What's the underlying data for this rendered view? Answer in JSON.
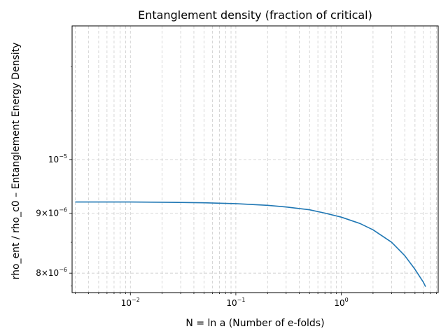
{
  "chart_data": {
    "type": "line",
    "title": "Entanglement density (fraction of critical)",
    "xlabel": "N = ln a (Number of e-folds)",
    "ylabel": "rho_ent / rho_c0 – Entanglement Energy Density",
    "xscale": "log",
    "yscale": "log",
    "xlim": [
      0.0028,
      8.3
    ],
    "ylim": [
      7.7e-06,
      1.3e-05
    ],
    "grid": true,
    "colors": {
      "line": "#1f77b4",
      "grid": "#cccccc"
    },
    "x_ticks_major": [
      {
        "value": 0.01,
        "base": "10",
        "exp": "−2"
      },
      {
        "value": 0.1,
        "base": "10",
        "exp": "−1"
      },
      {
        "value": 1,
        "base": "10",
        "exp": "0"
      }
    ],
    "y_ticks": [
      {
        "value": 1e-05,
        "base": "10",
        "exp": "−5"
      },
      {
        "value": 9e-06,
        "base": "9×10",
        "exp": "−6"
      },
      {
        "value": 8e-06,
        "base": "8×10",
        "exp": "−6"
      }
    ],
    "series": [
      {
        "x": [
          0.003,
          0.005,
          0.01,
          0.02,
          0.05,
          0.1,
          0.2,
          0.3,
          0.5,
          0.7,
          1.0,
          1.5,
          2.0,
          3.0,
          4.0,
          5.0,
          6.0,
          6.3
        ],
        "y": [
          9.2e-06,
          9.2e-06,
          9.2e-06,
          9.195e-06,
          9.185e-06,
          9.17e-06,
          9.14e-06,
          9.11e-06,
          9.06e-06,
          9e-06,
          8.93e-06,
          8.82e-06,
          8.71e-06,
          8.5e-06,
          8.28e-06,
          8.06e-06,
          7.86e-06,
          7.79e-06
        ]
      }
    ]
  }
}
